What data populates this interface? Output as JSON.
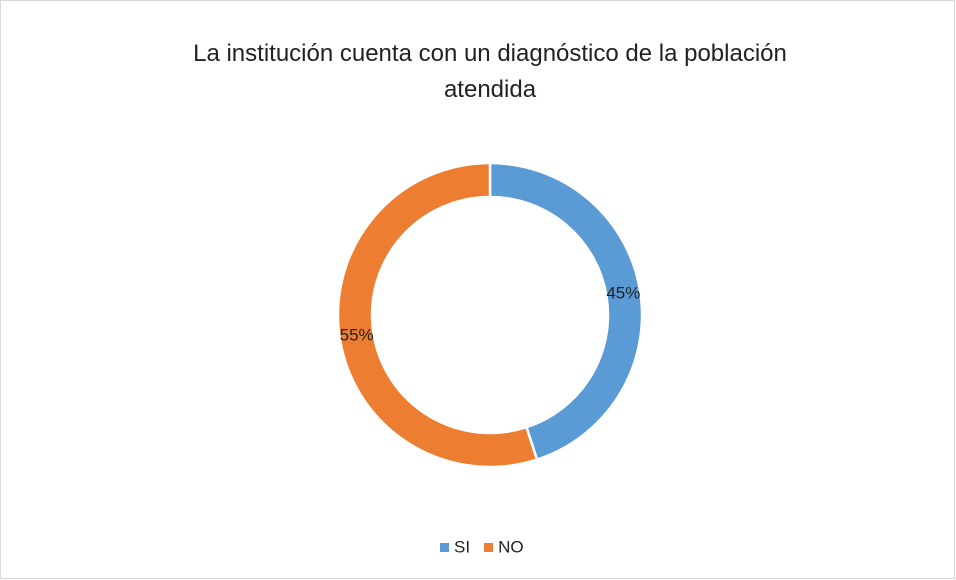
{
  "chart_data": {
    "type": "donut",
    "title": "La institución cuenta con un diagnóstico de la población atendida",
    "categories": [
      "SI",
      "NO"
    ],
    "values": [
      45,
      55
    ],
    "value_labels": [
      "45%",
      "55%"
    ],
    "colors": [
      "#5b9bd5",
      "#ed7d31"
    ],
    "legend": "bottom"
  }
}
